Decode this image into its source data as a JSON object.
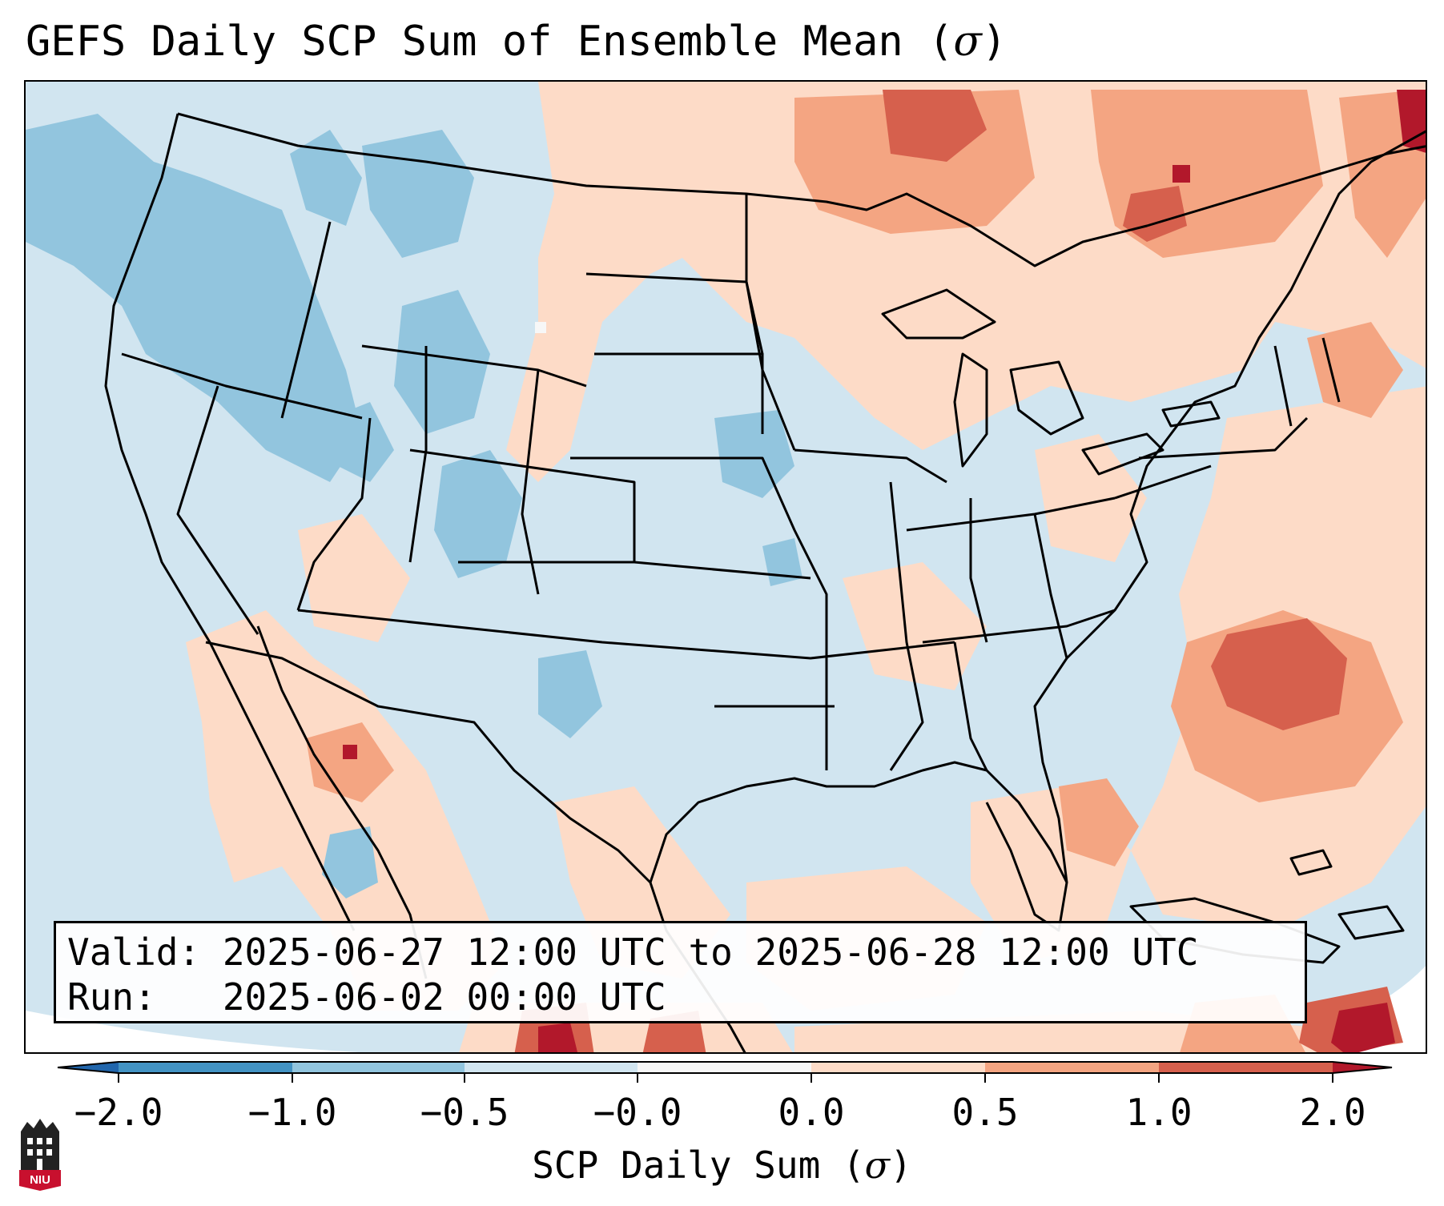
{
  "title": {
    "text": "GEFS Daily SCP Sum of Ensemble Mean (",
    "sigma": "σ",
    "close": ")"
  },
  "info": {
    "valid_line": "Valid: 2025-06-27 12:00 UTC to 2025-06-28 12:00 UTC",
    "run_line": "Run:   2025-06-02 00:00 UTC"
  },
  "colorbar": {
    "ticks": [
      "−2.0",
      "−1.0",
      "−0.5",
      "−0.0",
      "0.0",
      "0.5",
      "1.0",
      "2.0"
    ],
    "label_text": "SCP Daily Sum (",
    "label_sigma": "σ",
    "label_close": ")",
    "colors": [
      "#2166ac",
      "#4393c3",
      "#92c5de",
      "#d1e5f0",
      "#f7f7f7",
      "#fddbc7",
      "#f4a582",
      "#d6604d",
      "#b2182b"
    ]
  },
  "logo": {
    "text": "NIU"
  },
  "map_colors": {
    "ocean_base": "#d1e5f0",
    "light_red": "#fddbc7",
    "medium_red": "#f4a582",
    "strong_red": "#d6604d",
    "dark_red": "#b2182b",
    "light_blue": "#92c5de",
    "near_white": "#f7f7f7",
    "border": "#000000"
  }
}
